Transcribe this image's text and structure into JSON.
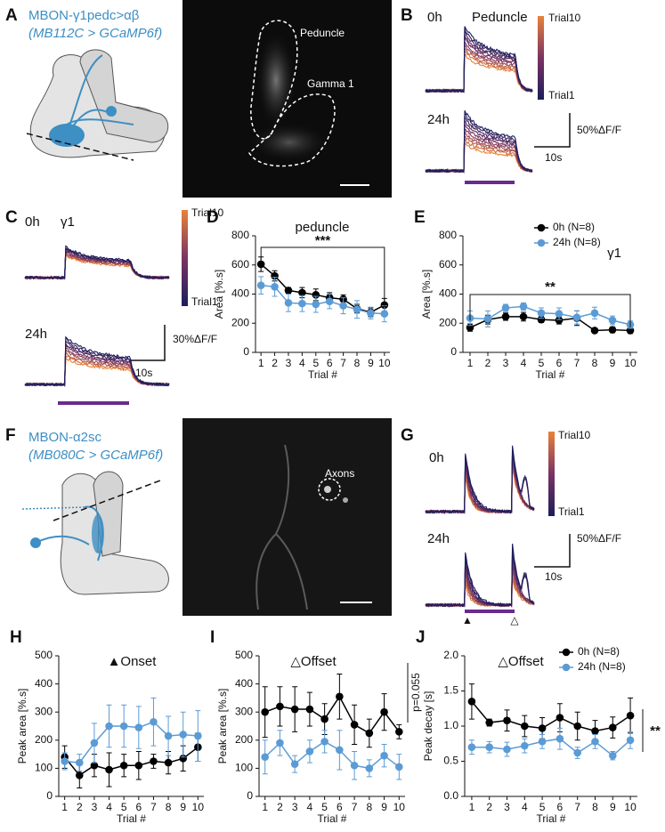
{
  "panels": {
    "A": {
      "letter": "A",
      "title": "MBON-γ1pedc>αβ",
      "subtitle": "(MB112C > GCaMP6f)",
      "image_labels": [
        "Peduncle",
        "Gamma 1"
      ]
    },
    "B": {
      "letter": "B",
      "rows": [
        "0h",
        "24h"
      ],
      "region": "Peduncle",
      "colorbar": [
        "Trial10",
        "Trial1"
      ],
      "scale_y": "50%ΔF/F",
      "scale_x": "10s"
    },
    "C": {
      "letter": "C",
      "rows": [
        "0h",
        "24h"
      ],
      "region": "γ1",
      "colorbar": [
        "Trial10",
        "Trial1"
      ],
      "scale_y": "30%ΔF/F",
      "scale_x": "10s"
    },
    "F": {
      "letter": "F",
      "title": "MBON-α2sc",
      "subtitle": "(MB080C > GCaMP6f)",
      "image_labels": [
        "Axons"
      ]
    },
    "G": {
      "letter": "G",
      "rows": [
        "0h",
        "24h"
      ],
      "colorbar": [
        "Trial10",
        "Trial1"
      ],
      "scale_y": "50%ΔF/F",
      "scale_x": "10s",
      "markers": [
        "▲",
        "△"
      ]
    }
  },
  "chart_data": [
    {
      "panel": "D",
      "type": "line",
      "title": "peduncle",
      "x_label": "Trial #",
      "y_label": "Area [%.s]",
      "x": [
        1,
        2,
        3,
        4,
        5,
        6,
        7,
        8,
        9,
        10
      ],
      "xlim": [
        0.6,
        10.4
      ],
      "xticks": [
        1,
        2,
        3,
        4,
        5,
        6,
        7,
        8,
        9,
        10
      ],
      "ylim": [
        0,
        800
      ],
      "yticks": [
        0,
        200,
        400,
        600,
        800
      ],
      "series": [
        {
          "color": "#000000",
          "values": [
            605,
            525,
            425,
            410,
            395,
            375,
            365,
            300,
            275,
            325
          ],
          "errors": [
            50,
            35,
            20,
            35,
            40,
            35,
            30,
            30,
            30,
            45
          ]
        },
        {
          "color": "#5b9bd5",
          "values": [
            460,
            450,
            340,
            335,
            330,
            350,
            320,
            295,
            270,
            265
          ],
          "errors": [
            60,
            65,
            60,
            55,
            55,
            50,
            55,
            60,
            40,
            55
          ]
        }
      ],
      "annotation": "***"
    },
    {
      "panel": "E",
      "type": "line",
      "title": "γ1",
      "x_label": "Trial #",
      "y_label": "Area [%.s]",
      "x": [
        1,
        2,
        3,
        4,
        5,
        6,
        7,
        8,
        9,
        10
      ],
      "xlim": [
        0.6,
        10.4
      ],
      "xticks": [
        1,
        2,
        3,
        4,
        5,
        6,
        7,
        8,
        9,
        10
      ],
      "ylim": [
        0,
        800
      ],
      "yticks": [
        0,
        200,
        400,
        600,
        800
      ],
      "series": [
        {
          "name": "0h (N=8)",
          "color": "#000000",
          "values": [
            170,
            225,
            245,
            245,
            225,
            220,
            235,
            150,
            155,
            150
          ],
          "errors": [
            25,
            30,
            25,
            30,
            20,
            25,
            50,
            15,
            20,
            20
          ]
        },
        {
          "name": "24h (N=8)",
          "color": "#5b9bd5",
          "values": [
            235,
            230,
            305,
            315,
            270,
            265,
            240,
            270,
            220,
            190
          ],
          "errors": [
            50,
            55,
            25,
            25,
            35,
            40,
            45,
            40,
            30,
            25
          ]
        }
      ],
      "annotation": "**"
    },
    {
      "panel": "H",
      "type": "line",
      "title": "▲Onset",
      "x_label": "Trial #",
      "y_label": "Peak area [%.s]",
      "x": [
        1,
        2,
        3,
        4,
        5,
        6,
        7,
        8,
        9,
        10
      ],
      "xlim": [
        0.6,
        10.4
      ],
      "xticks": [
        1,
        2,
        3,
        4,
        5,
        6,
        7,
        8,
        9,
        10
      ],
      "ylim": [
        0,
        500
      ],
      "yticks": [
        0,
        100,
        200,
        300,
        400,
        500
      ],
      "series": [
        {
          "color": "#000000",
          "values": [
            140,
            75,
            110,
            95,
            110,
            110,
            125,
            120,
            135,
            175
          ],
          "errors": [
            40,
            45,
            40,
            60,
            40,
            50,
            25,
            40,
            45,
            50
          ]
        },
        {
          "color": "#5b9bd5",
          "values": [
            125,
            120,
            190,
            250,
            250,
            245,
            265,
            215,
            220,
            215
          ],
          "errors": [
            30,
            30,
            70,
            75,
            75,
            75,
            85,
            70,
            80,
            90
          ]
        }
      ]
    },
    {
      "panel": "I",
      "type": "line",
      "title": "△Offset",
      "x_label": "Trial #",
      "y_label": "Peak area [%.s]",
      "x": [
        1,
        2,
        3,
        4,
        5,
        6,
        7,
        8,
        9,
        10
      ],
      "xlim": [
        0.6,
        10.4
      ],
      "xticks": [
        1,
        2,
        3,
        4,
        5,
        6,
        7,
        8,
        9,
        10
      ],
      "ylim": [
        0,
        500
      ],
      "yticks": [
        0,
        100,
        200,
        300,
        400,
        500
      ],
      "series": [
        {
          "color": "#000000",
          "values": [
            300,
            320,
            310,
            310,
            275,
            355,
            255,
            225,
            300,
            230
          ],
          "errors": [
            90,
            70,
            80,
            60,
            55,
            80,
            70,
            50,
            65,
            25
          ]
        },
        {
          "color": "#5b9bd5",
          "values": [
            140,
            190,
            115,
            160,
            195,
            165,
            110,
            100,
            145,
            105
          ],
          "errors": [
            60,
            45,
            30,
            40,
            40,
            70,
            50,
            30,
            40,
            45
          ]
        }
      ],
      "annotation": "p=0.055"
    },
    {
      "panel": "J",
      "type": "line",
      "title": "△Offset",
      "x_label": "Trial #",
      "y_label": "Peak decay [s]",
      "x": [
        1,
        2,
        3,
        4,
        5,
        6,
        7,
        8,
        9,
        10
      ],
      "xlim": [
        0.6,
        10.4
      ],
      "xticks": [
        1,
        2,
        3,
        4,
        5,
        6,
        7,
        8,
        9,
        10
      ],
      "ylim": [
        0,
        2
      ],
      "yticks": [
        {
          "value": 0,
          "label": "0.0"
        },
        0.5,
        {
          "value": 1,
          "label": "1.0"
        },
        1.5,
        {
          "value": 2,
          "label": "2.0"
        }
      ],
      "series": [
        {
          "name": "0h (N=8)",
          "color": "#000000",
          "values": [
            1.35,
            1.05,
            1.08,
            1.0,
            0.97,
            1.12,
            1.0,
            0.93,
            0.98,
            1.15
          ],
          "errors": [
            0.25,
            0.05,
            0.15,
            0.15,
            0.15,
            0.2,
            0.2,
            0.15,
            0.15,
            0.25
          ]
        },
        {
          "name": "24h (N=8)",
          "color": "#5b9bd5",
          "values": [
            0.7,
            0.7,
            0.67,
            0.72,
            0.78,
            0.82,
            0.62,
            0.78,
            0.58,
            0.8
          ],
          "errors": [
            0.1,
            0.08,
            0.1,
            0.1,
            0.1,
            0.15,
            0.08,
            0.1,
            0.06,
            0.12
          ]
        }
      ],
      "annotation": "**"
    }
  ]
}
